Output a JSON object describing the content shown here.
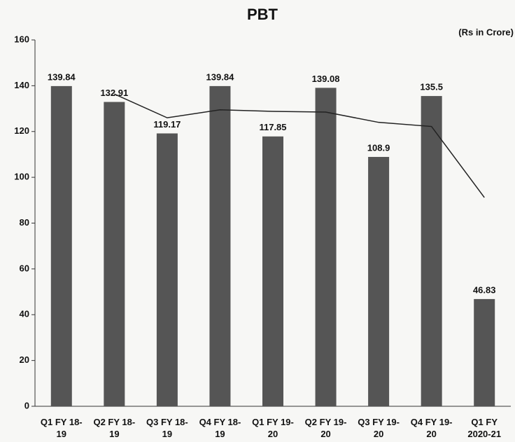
{
  "chart_data": {
    "type": "bar",
    "title": "PBT",
    "subtitle": "(Rs in Crore)",
    "categories": [
      "Q1 FY 18-\n19",
      "Q2 FY 18-\n19",
      "Q3 FY 18-\n19",
      "Q4 FY 18-\n19",
      "Q1 FY 19-\n20",
      "Q2 FY 19-\n20",
      "Q3 FY 19-\n20",
      "Q4 FY 19-\n20",
      "Q1 FY\n2020-21"
    ],
    "series": [
      {
        "type": "bar",
        "color": "#555555",
        "values": [
          139.84,
          132.91,
          119.17,
          139.84,
          117.85,
          139.08,
          108.9,
          135.5,
          46.83
        ]
      },
      {
        "type": "line",
        "color": "#222222",
        "values": [
          null,
          136.4,
          126.0,
          129.5,
          128.8,
          128.5,
          124.0,
          122.2,
          91.2
        ]
      }
    ],
    "ylim": [
      0,
      160
    ],
    "yticks": [
      0,
      20,
      40,
      60,
      80,
      100,
      120,
      140,
      160
    ],
    "grid": false
  }
}
